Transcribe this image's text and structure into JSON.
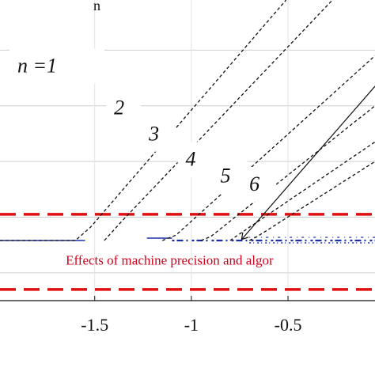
{
  "chart_data": {
    "type": "line",
    "title": "",
    "top_label": "n",
    "xlabel": "",
    "ylabel": "",
    "xlim": [
      -1.99,
      -0.05
    ],
    "ylim": [
      -3.2,
      7.6
    ],
    "x_ticks": [
      {
        "value": -1.5,
        "label": "-1.5"
      },
      {
        "value": -1.0,
        "label": "-1"
      },
      {
        "value": -0.5,
        "label": "-0.5"
      }
    ],
    "grid": true,
    "gridlines_y": [
      -2.2,
      -0.2,
      1.8,
      3.8,
      5.8
    ],
    "series": [
      {
        "name": "n = 1",
        "label": "n =1",
        "style": "dashed",
        "color": "#111111",
        "x": [
          -1.99,
          -1.6,
          -1.52,
          -0.51
        ],
        "y": [
          -1.04,
          -1.04,
          -0.55,
          7.6
        ]
      },
      {
        "name": "n = 2",
        "label": "2",
        "style": "dashed",
        "color": "#111111",
        "x": [
          -1.45,
          -1.36,
          -0.27
        ],
        "y": [
          -1.04,
          -0.35,
          7.6
        ]
      },
      {
        "name": "n = 3",
        "label": "3",
        "style": "dashed",
        "color": "#111111",
        "x": [
          -1.15,
          -1.08,
          -0.05
        ],
        "y": [
          -1.04,
          -0.85,
          5.6
        ]
      },
      {
        "name": "n = 4",
        "label": "4",
        "style": "dashed",
        "color": "#111111",
        "x": [
          -0.95,
          -0.9,
          -0.05
        ],
        "y": [
          -1.04,
          -0.9,
          3.8
        ]
      },
      {
        "name": "n = 5",
        "label": "5",
        "style": "dashed",
        "color": "#111111",
        "x": [
          -0.8,
          -0.76,
          -0.05
        ],
        "y": [
          -1.04,
          -0.85,
          2.5
        ]
      },
      {
        "name": "n = 6",
        "label": "6",
        "style": "dashed",
        "color": "#111111",
        "x": [
          -0.7,
          -0.66,
          -0.05
        ],
        "y": [
          -1.04,
          -0.9,
          1.8
        ]
      }
    ],
    "precision_band": {
      "y_upper": -0.1,
      "y_lower": -2.8,
      "color": "#e01010"
    },
    "noise_floor": {
      "y": -1.04,
      "color": "#1a2ea6",
      "x_start": -1.99,
      "x_end": -0.05
    },
    "labels": [
      {
        "text": "n =1",
        "x": -1.9,
        "y": 5.0,
        "kind": "n"
      },
      {
        "text": "2",
        "x": -1.4,
        "y": 3.5,
        "kind": "n"
      },
      {
        "text": "3",
        "x": -1.22,
        "y": 2.55,
        "kind": "n"
      },
      {
        "text": "4",
        "x": -1.03,
        "y": 1.65,
        "kind": "n"
      },
      {
        "text": "5",
        "x": -0.85,
        "y": 1.05,
        "kind": "n"
      },
      {
        "text": "6",
        "x": -0.7,
        "y": 0.75,
        "kind": "n"
      }
    ],
    "annotations": [
      {
        "text": "Effects of machine precision and algor",
        "x": -1.65,
        "y": -1.9
      },
      {
        "text": "",
        "arrow_from": [
          -0.05,
          4.5
        ],
        "arrow_to": [
          -0.74,
          -1.0
        ]
      }
    ]
  }
}
